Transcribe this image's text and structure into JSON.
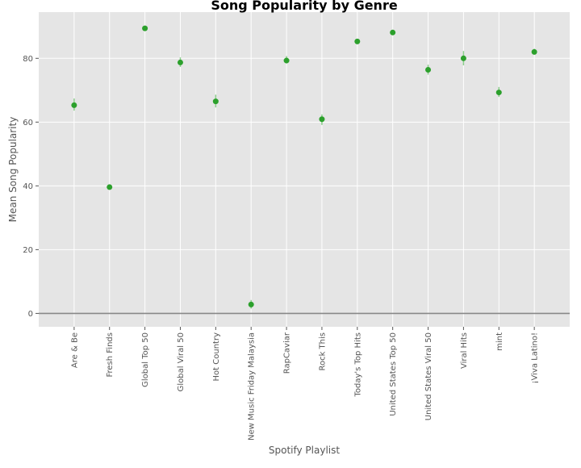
{
  "chart_data": {
    "type": "scatter",
    "title": "Song Popularity by Genre",
    "xlabel": "Spotify Playlist",
    "ylabel": "Mean Song Popularity",
    "categories": [
      "Are & Be",
      "Fresh Finds",
      "Global Top 50",
      "Global Viral 50",
      "Hot Country",
      "New Music Friday Malaysia",
      "RapCaviar",
      "Rock This",
      "Today's Top Hits",
      "United States Top 50",
      "United States Viral 50",
      "Viral Hits",
      "mint",
      "¡Viva Latino!"
    ],
    "series": [
      {
        "values": [
          65.3,
          39.6,
          89.4,
          78.7,
          66.5,
          2.8,
          79.3,
          60.9,
          85.3,
          88.1,
          76.4,
          80.0,
          69.3,
          82.0
        ],
        "error_low": [
          63.6,
          39.1,
          89.0,
          77.3,
          64.6,
          1.5,
          78.4,
          59.1,
          84.9,
          87.7,
          74.9,
          77.8,
          67.9,
          81.2
        ],
        "error_high": [
          67.4,
          40.1,
          89.8,
          80.3,
          68.6,
          4.2,
          80.7,
          62.4,
          85.8,
          88.5,
          78.0,
          82.3,
          71.0,
          83.0
        ]
      }
    ],
    "ylim": [
      -4.2,
      94.5
    ],
    "yticks": [
      0,
      20,
      40,
      60,
      80
    ],
    "reference_line_y": 0,
    "grid": true,
    "colors": {
      "marker": "#2ca02c",
      "errorbar": "#8ccf8c",
      "reference_line": "#888888",
      "plot_background": "#e5e5e5",
      "grid": "#ffffff"
    }
  }
}
